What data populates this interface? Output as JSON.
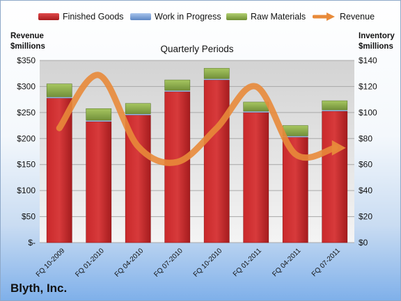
{
  "legend": {
    "finished_goods": "Finished Goods",
    "work_in_progress": "Work in Progress",
    "raw_materials": "Raw Materials",
    "revenue": "Revenue"
  },
  "axis_titles": {
    "left_line1": "Revenue",
    "left_line2": "$millions",
    "right_line1": "Inventory",
    "right_line2": "$millions"
  },
  "subtitle": "Quarterly Periods",
  "company": "Blyth, Inc.",
  "colors": {
    "finished_goods": "#c0282a",
    "work_in_progress": "#7aa0d8",
    "raw_materials": "#8fb04a",
    "revenue": "#e88a3a"
  },
  "chart_data": {
    "type": "bar",
    "title": "Quarterly Periods",
    "categories": [
      "FQ 10-2009",
      "FQ 01-2010",
      "FQ 04-2010",
      "FQ 07-2010",
      "FQ 10-2010",
      "FQ 01-2011",
      "FQ 04-2011",
      "FQ 07-2011"
    ],
    "left_axis": {
      "label": "Revenue $millions",
      "ticks": [
        "$-",
        "$50",
        "$100",
        "$150",
        "$200",
        "$250",
        "$300",
        "$350"
      ],
      "ylim": [
        0,
        350
      ]
    },
    "right_axis": {
      "label": "Inventory $millions",
      "ticks": [
        "$0",
        "$20",
        "$40",
        "$60",
        "$80",
        "$100",
        "$120",
        "$140"
      ],
      "ylim": [
        0,
        140
      ]
    },
    "series": [
      {
        "name": "Finished Goods",
        "axis": "right",
        "stack": true,
        "values": [
          111,
          93,
          98,
          116,
          125,
          100,
          81,
          101
        ]
      },
      {
        "name": "Work in Progress",
        "axis": "right",
        "stack": true,
        "values": [
          1,
          1,
          1,
          1,
          1,
          1,
          1,
          1
        ]
      },
      {
        "name": "Raw Materials",
        "axis": "right",
        "stack": true,
        "values": [
          10,
          9,
          8,
          8,
          8,
          7,
          8,
          7
        ]
      },
      {
        "name": "Revenue",
        "axis": "left",
        "type": "line",
        "values": [
          220,
          322,
          185,
          155,
          220,
          300,
          170,
          182
        ]
      }
    ],
    "grid": true,
    "legend_position": "top"
  }
}
